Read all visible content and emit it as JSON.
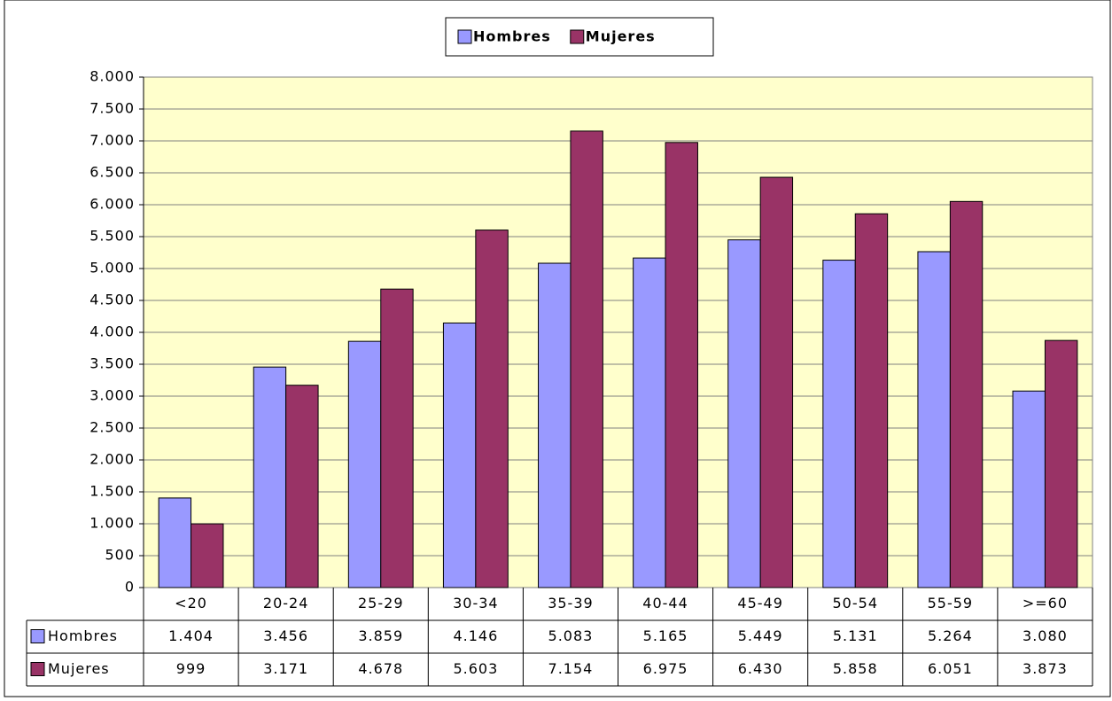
{
  "chart_data": {
    "type": "bar",
    "categories": [
      "<20",
      "20-24",
      "25-29",
      "30-34",
      "35-39",
      "40-44",
      "45-49",
      "50-54",
      "55-59",
      ">=60"
    ],
    "series": [
      {
        "name": "Hombres",
        "color": "#9999ff",
        "values": [
          1404,
          3456,
          3859,
          4146,
          5083,
          5165,
          5449,
          5131,
          5264,
          3080
        ],
        "value_labels": [
          "1.404",
          "3.456",
          "3.859",
          "4.146",
          "5.083",
          "5.165",
          "5.449",
          "5.131",
          "5.264",
          "3.080"
        ]
      },
      {
        "name": "Mujeres",
        "color": "#993366",
        "values": [
          999,
          3171,
          4678,
          5603,
          7154,
          6975,
          6430,
          5858,
          6051,
          3873
        ],
        "value_labels": [
          "999",
          "3.171",
          "4.678",
          "5.603",
          "7.154",
          "6.975",
          "6.430",
          "5.858",
          "6.051",
          "3.873"
        ]
      }
    ],
    "ylim": [
      0,
      8000
    ],
    "yticks": [
      0,
      500,
      {
        "value": 1000,
        "label": "1.000"
      },
      {
        "value": 1500,
        "label": "1.500"
      },
      {
        "value": 2000,
        "label": "2.000"
      },
      {
        "value": 2500,
        "label": "2.500"
      },
      {
        "value": 3000,
        "label": "3.000"
      },
      {
        "value": 3500,
        "label": "3.500"
      },
      {
        "value": 4000,
        "label": "4.000"
      },
      {
        "value": 4500,
        "label": "4.500"
      },
      {
        "value": 5000,
        "label": "5.000"
      },
      {
        "value": 5500,
        "label": "5.500"
      },
      {
        "value": 6000,
        "label": "6.000"
      },
      {
        "value": 6500,
        "label": "6.500"
      },
      {
        "value": 7000,
        "label": "7.000"
      },
      {
        "value": 7500,
        "label": "7.500"
      },
      {
        "value": 8000,
        "label": "8.000"
      }
    ],
    "grid": true,
    "legend": "top",
    "plot_background": "#ffffcc"
  }
}
